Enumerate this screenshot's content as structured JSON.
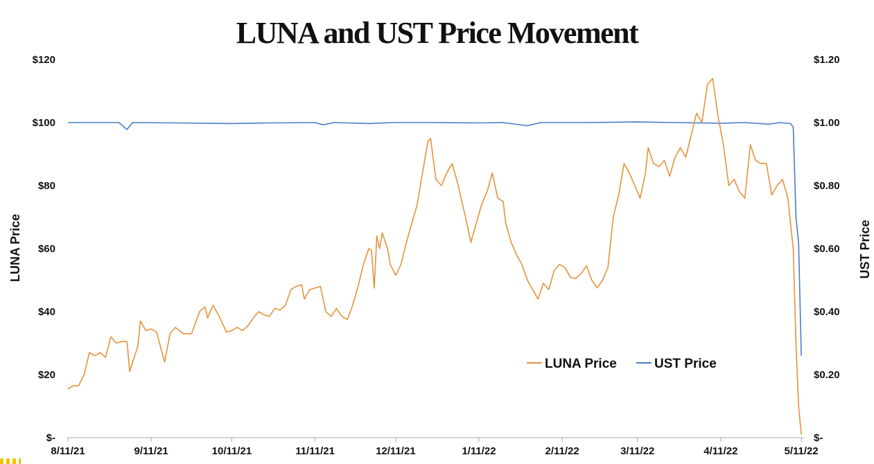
{
  "chart_data": {
    "type": "line",
    "title": "LUNA and UST Price Movement",
    "ylabel": "LUNA Price",
    "y2label": "UST Price",
    "xlabel": "",
    "x_tick_labels": [
      "8/11/21",
      "9/11/21",
      "10/11/21",
      "11/11/21",
      "12/11/21",
      "1/11/22",
      "2/11/22",
      "3/11/22",
      "4/11/22",
      "5/11/22"
    ],
    "y_tick_labels": [
      "$-",
      "$20",
      "$40",
      "$60",
      "$80",
      "$100",
      "$120"
    ],
    "y2_tick_labels": [
      "$-",
      "$0.20",
      "$0.40",
      "$0.60",
      "$0.80",
      "$1.00",
      "$1.20"
    ],
    "ylim": [
      0,
      120
    ],
    "y2lim": [
      0,
      1.2
    ],
    "xlim": [
      "2021-08-11",
      "2022-05-12"
    ],
    "grid": false,
    "legend_position": "lower-right",
    "series": [
      {
        "name": "LUNA Price",
        "axis": "left",
        "color": "#E8913A",
        "points": [
          [
            "2021-08-11",
            15.5
          ],
          [
            "2021-08-13",
            16.5
          ],
          [
            "2021-08-15",
            16.5
          ],
          [
            "2021-08-17",
            20
          ],
          [
            "2021-08-19",
            27
          ],
          [
            "2021-08-21",
            26
          ],
          [
            "2021-08-23",
            27
          ],
          [
            "2021-08-25",
            25.5
          ],
          [
            "2021-08-27",
            32
          ],
          [
            "2021-08-29",
            30
          ],
          [
            "2021-08-31",
            30.5
          ],
          [
            "2021-09-02",
            30.5
          ],
          [
            "2021-09-03",
            21
          ],
          [
            "2021-09-06",
            29
          ],
          [
            "2021-09-07",
            37
          ],
          [
            "2021-09-09",
            34
          ],
          [
            "2021-09-11",
            34.5
          ],
          [
            "2021-09-13",
            33.5
          ],
          [
            "2021-09-16",
            24
          ],
          [
            "2021-09-18",
            33
          ],
          [
            "2021-09-20",
            35
          ],
          [
            "2021-09-23",
            33
          ],
          [
            "2021-09-26",
            33
          ],
          [
            "2021-09-29",
            40
          ],
          [
            "2021-10-01",
            41.5
          ],
          [
            "2021-10-02",
            38
          ],
          [
            "2021-10-04",
            42
          ],
          [
            "2021-10-06",
            39
          ],
          [
            "2021-10-09",
            33.5
          ],
          [
            "2021-10-11",
            34
          ],
          [
            "2021-10-13",
            35
          ],
          [
            "2021-10-15",
            34
          ],
          [
            "2021-10-17",
            35.5
          ],
          [
            "2021-10-19",
            38
          ],
          [
            "2021-10-21",
            40
          ],
          [
            "2021-10-23",
            39
          ],
          [
            "2021-10-25",
            38.5
          ],
          [
            "2021-10-27",
            41
          ],
          [
            "2021-10-29",
            40.5
          ],
          [
            "2021-10-31",
            42
          ],
          [
            "2021-11-02",
            47
          ],
          [
            "2021-11-04",
            48
          ],
          [
            "2021-11-06",
            48.5
          ],
          [
            "2021-11-07",
            44
          ],
          [
            "2021-11-09",
            47
          ],
          [
            "2021-11-11",
            47.5
          ],
          [
            "2021-11-13",
            48
          ],
          [
            "2021-11-15",
            40
          ],
          [
            "2021-11-17",
            38.5
          ],
          [
            "2021-11-19",
            41
          ],
          [
            "2021-11-21",
            38.5
          ],
          [
            "2021-11-23",
            37.5
          ],
          [
            "2021-11-25",
            42
          ],
          [
            "2021-11-27",
            48
          ],
          [
            "2021-11-29",
            55
          ],
          [
            "2021-12-01",
            60
          ],
          [
            "2021-12-02",
            59.5
          ],
          [
            "2021-12-03",
            47.5
          ],
          [
            "2021-12-04",
            64
          ],
          [
            "2021-12-05",
            60
          ],
          [
            "2021-12-06",
            65
          ],
          [
            "2021-12-08",
            60
          ],
          [
            "2021-12-09",
            55
          ],
          [
            "2021-12-11",
            51.5
          ],
          [
            "2021-12-13",
            55
          ],
          [
            "2021-12-15",
            62
          ],
          [
            "2021-12-17",
            68
          ],
          [
            "2021-12-19",
            74
          ],
          [
            "2021-12-21",
            84
          ],
          [
            "2021-12-23",
            94
          ],
          [
            "2021-12-24",
            95
          ],
          [
            "2021-12-26",
            82
          ],
          [
            "2021-12-28",
            80
          ],
          [
            "2021-12-30",
            84
          ],
          [
            "2022-01-01",
            87
          ],
          [
            "2022-01-03",
            81
          ],
          [
            "2022-01-06",
            70
          ],
          [
            "2022-01-08",
            62
          ],
          [
            "2022-01-10",
            68
          ],
          [
            "2022-01-12",
            74
          ],
          [
            "2022-01-14",
            78
          ],
          [
            "2022-01-16",
            84
          ],
          [
            "2022-01-18",
            76
          ],
          [
            "2022-01-20",
            75
          ],
          [
            "2022-01-21",
            68
          ],
          [
            "2022-01-23",
            62
          ],
          [
            "2022-01-25",
            58
          ],
          [
            "2022-01-27",
            55
          ],
          [
            "2022-01-29",
            50
          ],
          [
            "2022-01-31",
            47
          ],
          [
            "2022-02-02",
            44
          ],
          [
            "2022-02-04",
            49
          ],
          [
            "2022-02-06",
            47
          ],
          [
            "2022-02-08",
            53
          ],
          [
            "2022-02-10",
            55
          ],
          [
            "2022-02-12",
            54
          ],
          [
            "2022-02-14",
            51
          ],
          [
            "2022-02-16",
            50.5
          ],
          [
            "2022-02-18",
            52
          ],
          [
            "2022-02-20",
            54.5
          ],
          [
            "2022-02-22",
            50
          ],
          [
            "2022-02-24",
            47.5
          ],
          [
            "2022-02-26",
            50
          ],
          [
            "2022-02-28",
            54
          ],
          [
            "2022-03-02",
            70
          ],
          [
            "2022-03-04",
            77
          ],
          [
            "2022-03-06",
            87
          ],
          [
            "2022-03-08",
            84
          ],
          [
            "2022-03-10",
            80
          ],
          [
            "2022-03-12",
            76
          ],
          [
            "2022-03-14",
            84
          ],
          [
            "2022-03-15",
            92
          ],
          [
            "2022-03-17",
            87
          ],
          [
            "2022-03-19",
            86
          ],
          [
            "2022-03-21",
            88
          ],
          [
            "2022-03-23",
            83
          ],
          [
            "2022-03-25",
            89
          ],
          [
            "2022-03-27",
            92
          ],
          [
            "2022-03-29",
            89
          ],
          [
            "2022-03-31",
            96
          ],
          [
            "2022-04-02",
            103
          ],
          [
            "2022-04-04",
            100
          ],
          [
            "2022-04-06",
            112
          ],
          [
            "2022-04-08",
            114
          ],
          [
            "2022-04-10",
            102
          ],
          [
            "2022-04-12",
            93
          ],
          [
            "2022-04-14",
            80
          ],
          [
            "2022-04-16",
            82
          ],
          [
            "2022-04-18",
            78
          ],
          [
            "2022-04-20",
            76
          ],
          [
            "2022-04-22",
            93
          ],
          [
            "2022-04-24",
            88
          ],
          [
            "2022-04-26",
            87
          ],
          [
            "2022-04-28",
            87
          ],
          [
            "2022-04-30",
            77
          ],
          [
            "2022-05-02",
            80
          ],
          [
            "2022-05-04",
            82
          ],
          [
            "2022-05-06",
            76
          ],
          [
            "2022-05-08",
            60
          ],
          [
            "2022-05-09",
            30
          ],
          [
            "2022-05-10",
            10
          ],
          [
            "2022-05-11",
            1
          ]
        ]
      },
      {
        "name": "UST Price",
        "axis": "right",
        "color": "#4A7BC8",
        "points": [
          [
            "2021-08-11",
            1.0
          ],
          [
            "2021-08-20",
            1.0
          ],
          [
            "2021-08-30",
            1.0
          ],
          [
            "2021-09-02",
            0.978
          ],
          [
            "2021-09-04",
            1.0
          ],
          [
            "2021-09-20",
            0.999
          ],
          [
            "2021-10-11",
            0.997
          ],
          [
            "2021-10-25",
            0.999
          ],
          [
            "2021-11-11",
            1.0
          ],
          [
            "2021-11-14",
            0.993
          ],
          [
            "2021-11-18",
            1.0
          ],
          [
            "2021-12-01",
            0.997
          ],
          [
            "2021-12-10",
            1.0
          ],
          [
            "2021-12-25",
            1.0
          ],
          [
            "2022-01-11",
            0.999
          ],
          [
            "2022-01-20",
            1.0
          ],
          [
            "2022-01-29",
            0.99
          ],
          [
            "2022-02-03",
            1.0
          ],
          [
            "2022-02-20",
            1.0
          ],
          [
            "2022-03-11",
            1.002
          ],
          [
            "2022-03-25",
            1.0
          ],
          [
            "2022-04-11",
            0.998
          ],
          [
            "2022-04-20",
            1.0
          ],
          [
            "2022-04-29",
            0.995
          ],
          [
            "2022-05-03",
            1.0
          ],
          [
            "2022-05-07",
            0.997
          ],
          [
            "2022-05-08",
            0.985
          ],
          [
            "2022-05-09",
            0.7
          ],
          [
            "2022-05-10",
            0.62
          ],
          [
            "2022-05-11",
            0.26
          ]
        ]
      }
    ]
  }
}
